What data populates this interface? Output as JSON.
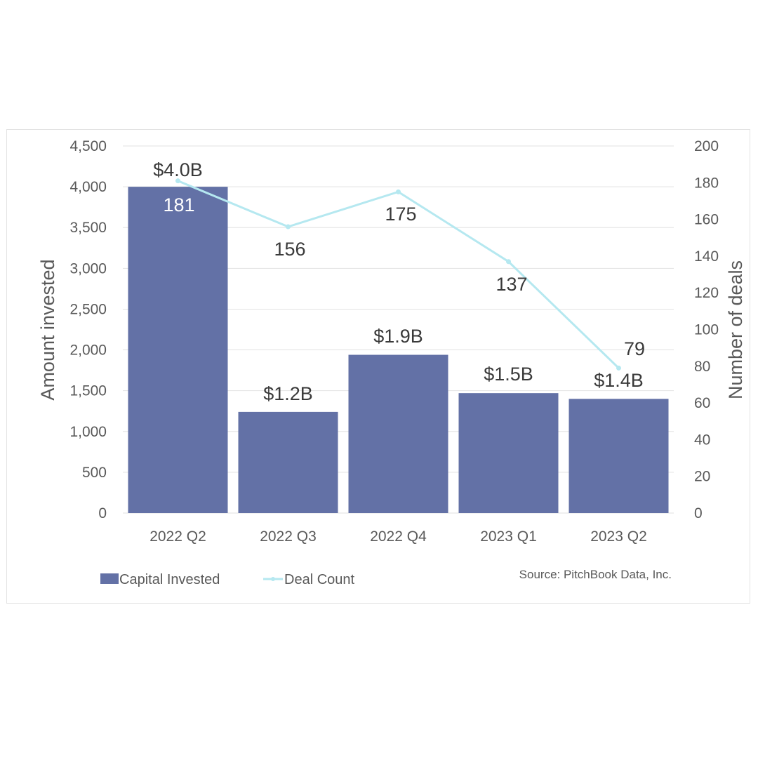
{
  "chart_data": {
    "type": "bar",
    "title": "",
    "categories": [
      "2022 Q2",
      "2022 Q3",
      "2022 Q4",
      "2023 Q1",
      "2023 Q2"
    ],
    "series": [
      {
        "name": "Capital Invested",
        "type": "bar",
        "axis": "left",
        "color": "#6371a6",
        "values": [
          4000,
          1240,
          1940,
          1470,
          1400
        ],
        "labels": [
          "$4.0B",
          "$1.2B",
          "$1.9B",
          "$1.5B",
          "$1.4B"
        ]
      },
      {
        "name": "Deal Count",
        "type": "line",
        "axis": "right",
        "color": "#b5e8f0",
        "values": [
          181,
          156,
          175,
          137,
          79
        ],
        "labels": [
          "181",
          "156",
          "175",
          "137",
          "79"
        ]
      }
    ],
    "ylabel": "Amount invested",
    "ylabel_right": "Number of deals",
    "ylim": [
      0,
      4500
    ],
    "ylim_right": [
      0,
      200
    ],
    "yticks": [
      "0",
      "500",
      "1,000",
      "1,500",
      "2,000",
      "2,500",
      "3,000",
      "3,500",
      "4,000",
      "4,500"
    ],
    "yticks_right": [
      "0",
      "20",
      "40",
      "60",
      "80",
      "100",
      "120",
      "140",
      "160",
      "180",
      "200"
    ],
    "grid": true,
    "legend_position": "bottom-left",
    "source": "Source: PitchBook Data, Inc."
  }
}
